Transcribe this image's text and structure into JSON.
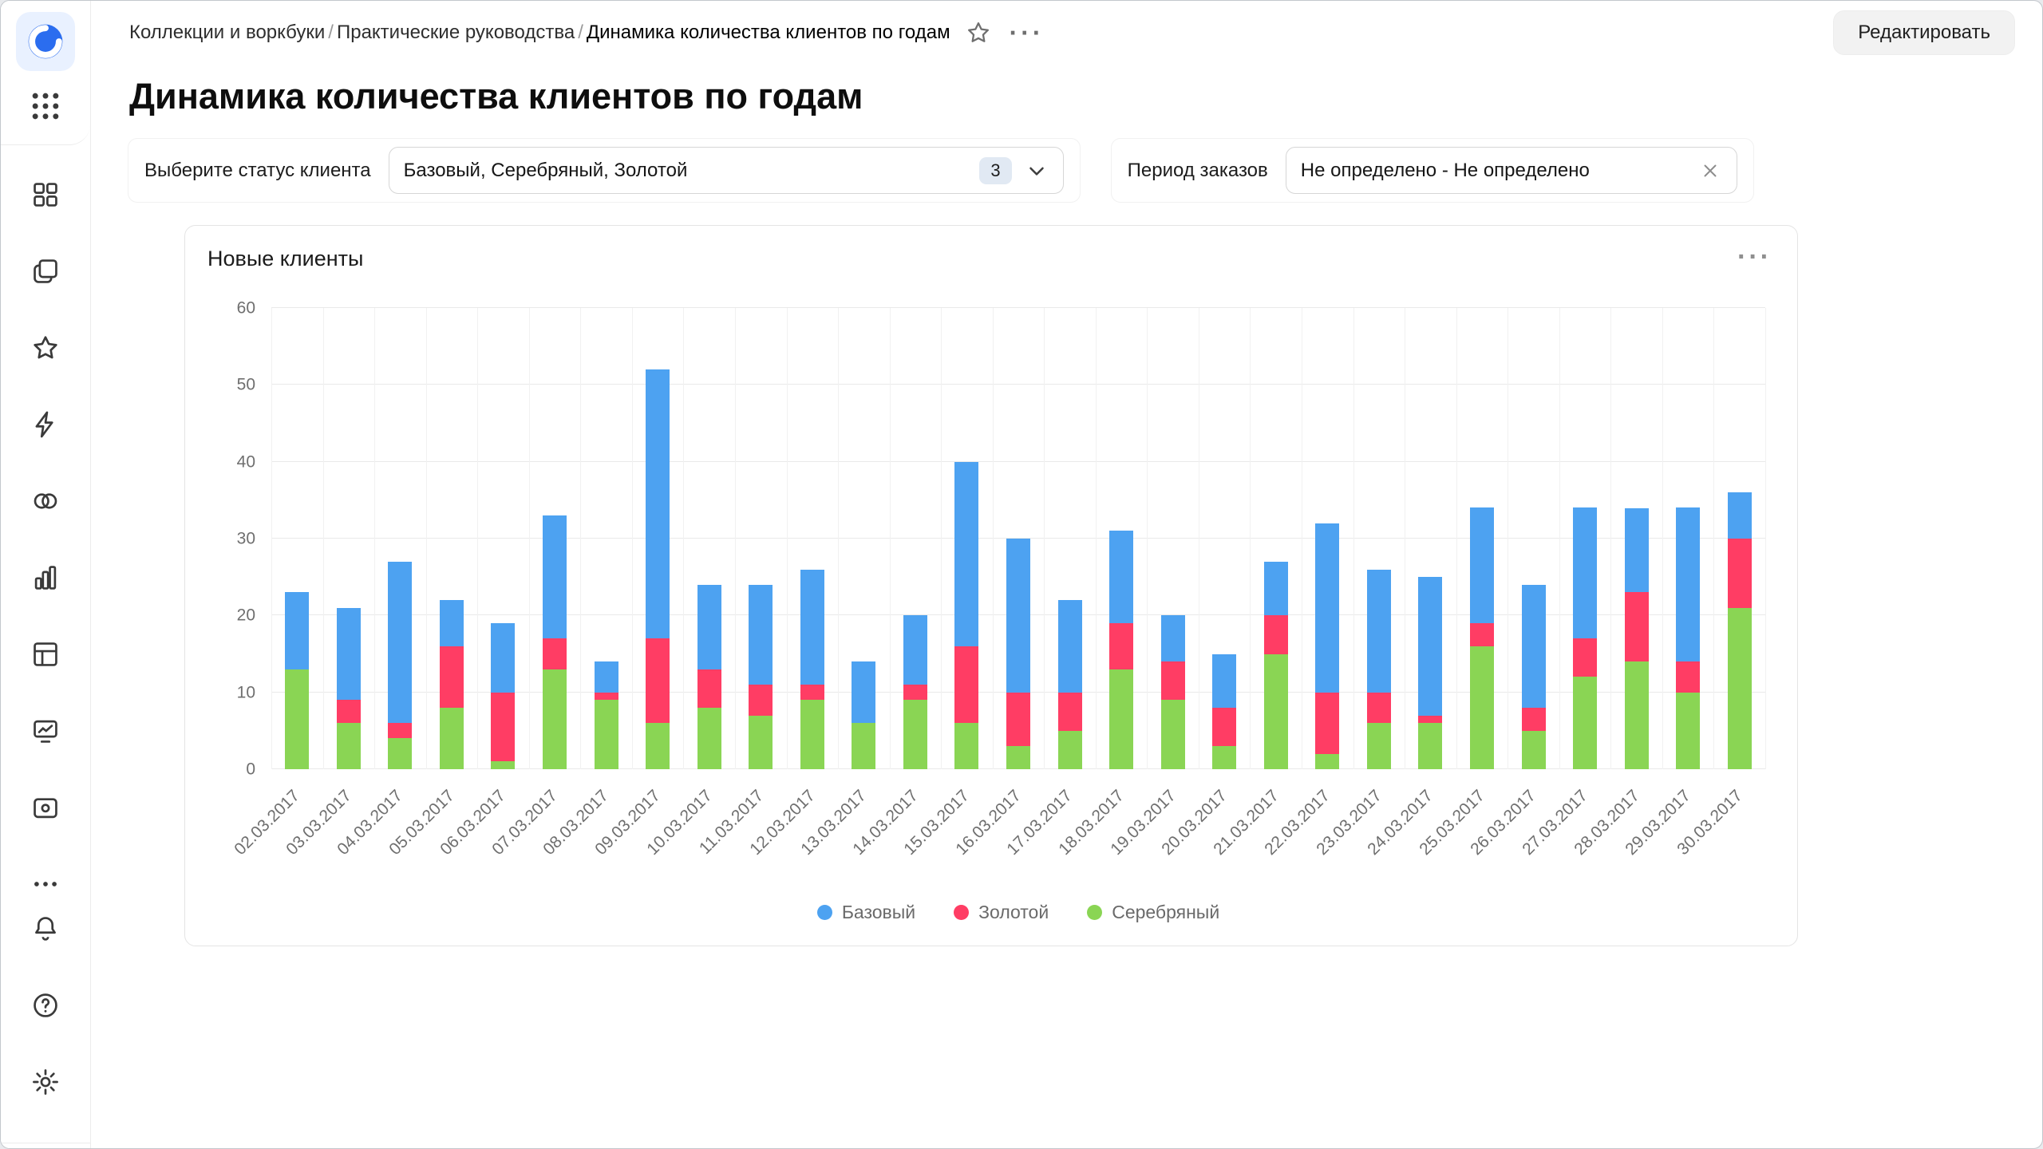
{
  "app": {
    "edit_button_label": "Редактировать"
  },
  "breadcrumbs": {
    "separator": "/",
    "items": [
      "Коллекции и воркбуки",
      "Практические руководства",
      "Динамика количества клиентов по годам"
    ]
  },
  "page": {
    "title": "Динамика количества клиентов по годам"
  },
  "filters": {
    "status": {
      "label": "Выберите статус клиента",
      "value": "Базовый, Серебряный, Золотой",
      "selected_count": "3"
    },
    "period": {
      "label": "Период заказов",
      "value": "Не определено - Не определено"
    }
  },
  "widget": {
    "title": "Новые клиенты"
  },
  "colors": {
    "base_blue": "#4DA2F1",
    "gold_red": "#FF3D64",
    "silver_green": "#8AD554"
  },
  "sidebar": {
    "icons": [
      "datalens-logo",
      "apps-grid",
      "collections",
      "workbooks",
      "favorites",
      "editor",
      "connections",
      "charts",
      "datasets",
      "dashboards",
      "services",
      "more",
      "notifications",
      "help",
      "settings",
      "expand-panel"
    ]
  },
  "chart_data": {
    "type": "bar",
    "stacked": true,
    "title": "Новые клиенты",
    "xlabel": "",
    "ylabel": "",
    "ylim": [
      0,
      60
    ],
    "yticks": [
      0,
      10,
      20,
      30,
      40,
      50,
      60
    ],
    "grid": true,
    "legend_position": "bottom",
    "categories": [
      "02.03.2017",
      "03.03.2017",
      "04.03.2017",
      "05.03.2017",
      "06.03.2017",
      "07.03.2017",
      "08.03.2017",
      "09.03.2017",
      "10.03.2017",
      "11.03.2017",
      "12.03.2017",
      "13.03.2017",
      "14.03.2017",
      "15.03.2017",
      "16.03.2017",
      "17.03.2017",
      "18.03.2017",
      "19.03.2017",
      "20.03.2017",
      "21.03.2017",
      "22.03.2017",
      "23.03.2017",
      "24.03.2017",
      "25.03.2017",
      "26.03.2017",
      "27.03.2017",
      "28.03.2017",
      "29.03.2017",
      "30.03.2017"
    ],
    "stack_order_note": "series listed bottom-to-top of stack",
    "series": [
      {
        "name": "Серебряный",
        "color": "#8AD554",
        "values": [
          13,
          6,
          4,
          8,
          1,
          13,
          9,
          6,
          8,
          7,
          9,
          6,
          9,
          6,
          3,
          5,
          13,
          9,
          3,
          15,
          2,
          6,
          6,
          16,
          5,
          12,
          14,
          10,
          21
        ]
      },
      {
        "name": "Золотой",
        "color": "#FF3D64",
        "values": [
          0,
          3,
          2,
          8,
          9,
          4,
          1,
          11,
          5,
          4,
          2,
          0,
          2,
          10,
          7,
          5,
          6,
          5,
          5,
          5,
          8,
          4,
          1,
          3,
          3,
          5,
          9,
          4,
          9
        ]
      },
      {
        "name": "Базовый",
        "color": "#4DA2F1",
        "values": [
          10,
          12,
          21,
          6,
          9,
          16,
          4,
          35,
          11,
          13,
          15,
          8,
          9,
          24,
          20,
          12,
          12,
          6,
          7,
          7,
          22,
          16,
          18,
          15,
          16,
          17,
          11,
          20,
          6
        ]
      }
    ],
    "legend": [
      {
        "name": "Базовый",
        "color": "#4DA2F1"
      },
      {
        "name": "Золотой",
        "color": "#FF3D64"
      },
      {
        "name": "Серебряный",
        "color": "#8AD554"
      }
    ]
  }
}
